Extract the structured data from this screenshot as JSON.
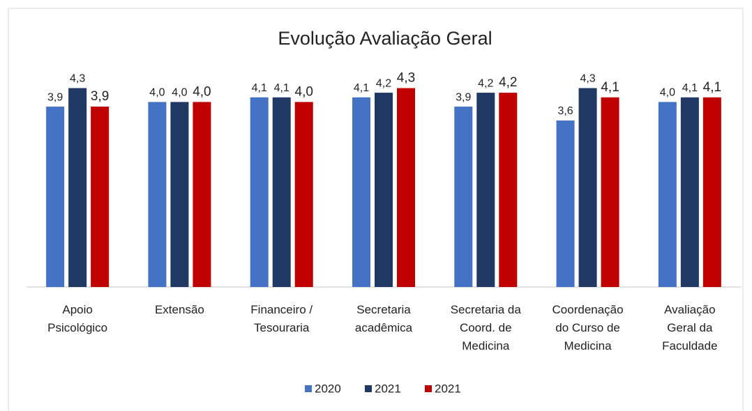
{
  "chart_data": {
    "type": "bar",
    "title": "Evolução Avaliação Geral",
    "categories": [
      "Apoio\nPsicológico",
      "Extensão",
      "Financeiro /\nTesouraria",
      "Secretaria\nacadêmica",
      "Secretaria da\nCoord. de\nMedicina",
      "Coordenação\ndo Curso de\nMedicina",
      "Avaliação\nGeral da\nFaculdade"
    ],
    "series": [
      {
        "name": "2020",
        "color": "#4472c4",
        "values": [
          3.9,
          4.0,
          4.1,
          4.1,
          3.9,
          3.6,
          4.0
        ],
        "value_labels": [
          "3,9",
          "4,0",
          "4,1",
          "4,1",
          "3,9",
          "3,6",
          "4,0"
        ]
      },
      {
        "name": "2021",
        "color": "#1f3864",
        "values": [
          4.3,
          4.0,
          4.1,
          4.2,
          4.2,
          4.3,
          4.1
        ],
        "value_labels": [
          "4,3",
          "4,0",
          "4,1",
          "4,2",
          "4,2",
          "4,3",
          "4,1"
        ]
      },
      {
        "name": "2021",
        "color": "#c00000",
        "values": [
          3.9,
          4.0,
          4.0,
          4.3,
          4.2,
          4.1,
          4.1
        ],
        "value_labels": [
          "3,9",
          "4,0",
          "4,0",
          "4,3",
          "4,2",
          "4,1",
          "4,1"
        ]
      }
    ],
    "ylim": [
      0,
      5
    ],
    "legend": "bottom"
  }
}
